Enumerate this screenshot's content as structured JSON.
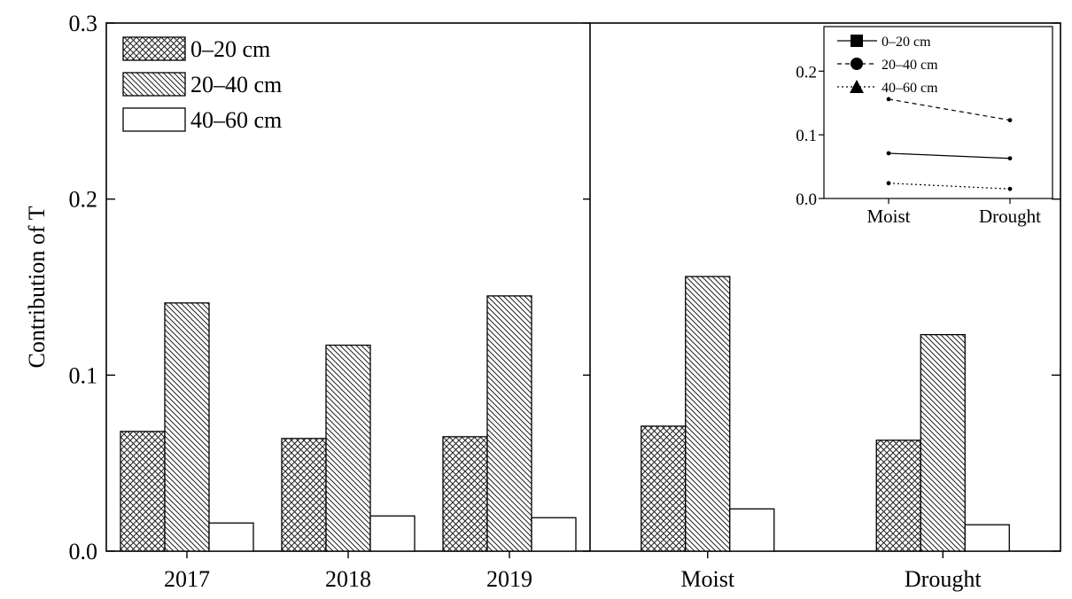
{
  "chart_data": [
    {
      "type": "bar",
      "panel": "left",
      "categories": [
        "2017",
        "2018",
        "2019"
      ],
      "series": [
        {
          "name": "0–20 cm",
          "values": [
            0.068,
            0.064,
            0.065
          ],
          "pattern": "crosshatch"
        },
        {
          "name": "20–40 cm",
          "values": [
            0.141,
            0.117,
            0.145
          ],
          "pattern": "diagonal"
        },
        {
          "name": "40–60 cm",
          "values": [
            0.016,
            0.02,
            0.019
          ],
          "pattern": "none"
        }
      ],
      "title": "",
      "xlabel": "",
      "ylabel": "Contribution of T",
      "ylim": [
        0,
        0.3
      ],
      "yticks": [
        "0.0",
        "0.1",
        "0.2",
        "0.3"
      ],
      "legend": "top-left",
      "grid": false
    },
    {
      "type": "bar",
      "panel": "right",
      "categories": [
        "Moist",
        "Drought"
      ],
      "series": [
        {
          "name": "0–20 cm",
          "values": [
            0.071,
            0.063
          ],
          "pattern": "crosshatch"
        },
        {
          "name": "20–40 cm",
          "values": [
            0.156,
            0.123
          ],
          "pattern": "diagonal"
        },
        {
          "name": "40–60 cm",
          "values": [
            0.024,
            0.015
          ],
          "pattern": "none"
        }
      ],
      "ylim": [
        0,
        0.3
      ],
      "grid": false
    },
    {
      "type": "line",
      "panel": "inset",
      "categories": [
        "Moist",
        "Drought"
      ],
      "series": [
        {
          "name": "0–20  cm",
          "values": [
            0.071,
            0.063
          ],
          "marker": "square",
          "dash": "solid"
        },
        {
          "name": "20–40 cm",
          "values": [
            0.156,
            0.123
          ],
          "marker": "circle",
          "dash": "dashed"
        },
        {
          "name": "40–60 cm",
          "values": [
            0.024,
            0.015
          ],
          "marker": "triangle",
          "dash": "dotted"
        }
      ],
      "ylim": [
        0,
        0.27
      ],
      "yticks": [
        "0.0",
        "0.1",
        "0.2"
      ],
      "legend": "top-left",
      "grid": false
    }
  ]
}
